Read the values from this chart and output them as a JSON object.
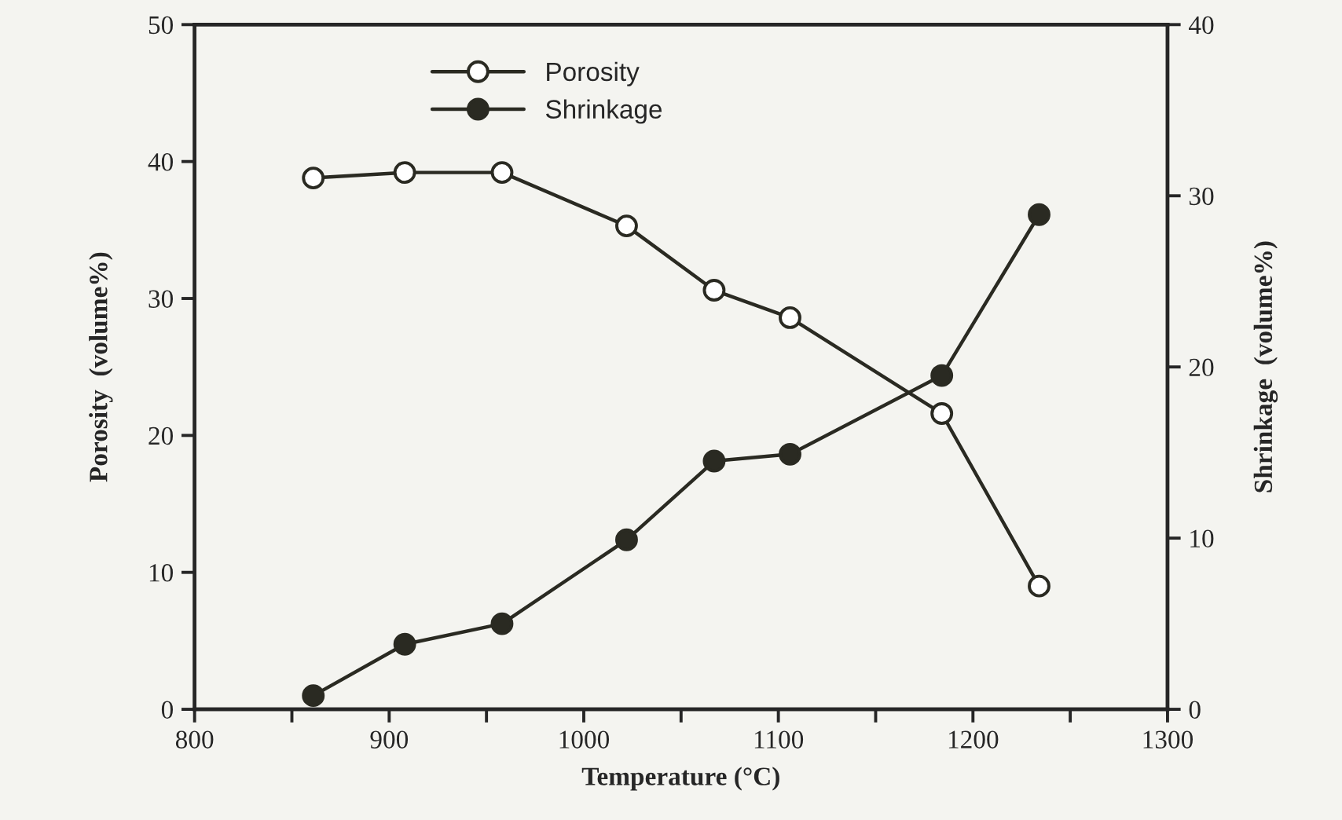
{
  "chart_data": {
    "type": "line",
    "xlabel": "Temperature (°C)",
    "ylabel": "Porosity  (volume%)",
    "y2label": "Shrinkage  (volume%)",
    "x": [
      861,
      908,
      958,
      1022,
      1067,
      1106,
      1184,
      1234
    ],
    "series": [
      {
        "name": "Porosity",
        "color": "#2a2a22",
        "values": [
          38.8,
          39.2,
          39.2,
          35.3,
          30.6,
          28.6,
          21.6,
          9.0
        ],
        "marker": "circle"
      },
      {
        "name": "Shrinkage",
        "color": "#2a2a22",
        "axis": "y2",
        "values": [
          0.8,
          3.8,
          5.0,
          9.9,
          14.5,
          14.9,
          19.5,
          28.9
        ],
        "marker": "circle"
      }
    ],
    "xlim": [
      800,
      1300
    ],
    "xticks": [
      800,
      {
        "value": 850,
        "label": null
      },
      900,
      {
        "value": 950,
        "label": null
      },
      1000,
      {
        "value": 1050,
        "label": null
      },
      1100,
      {
        "value": 1150,
        "label": null
      },
      1200,
      {
        "value": 1250,
        "label": null
      },
      1300
    ],
    "ylim": [
      0,
      50
    ],
    "yticks": [
      0,
      10,
      20,
      30,
      40,
      50
    ],
    "y2lim": [
      0,
      40
    ],
    "y2ticks": [
      0,
      10,
      20,
      30,
      40
    ],
    "legend": "top",
    "grid": false,
    "line_style": "solid"
  }
}
